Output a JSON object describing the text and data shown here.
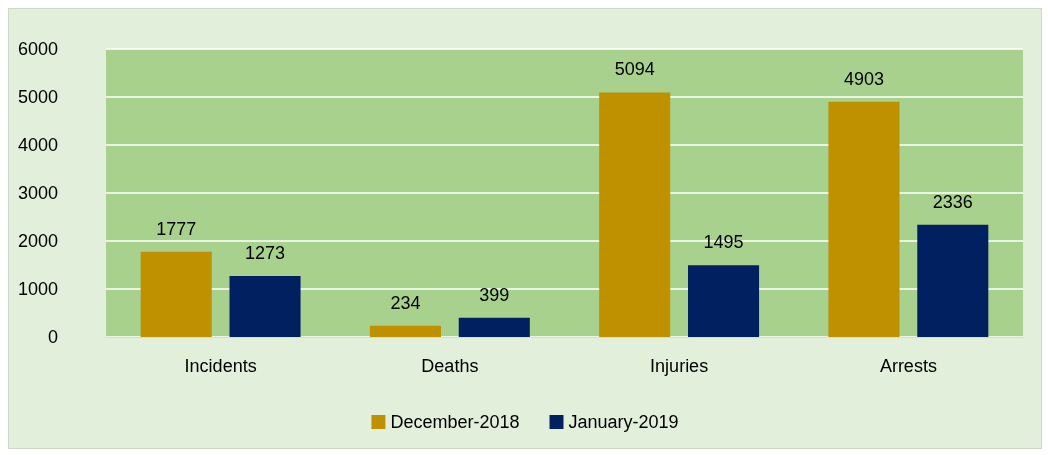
{
  "chart_data": {
    "type": "bar",
    "categories": [
      "Incidents",
      "Deaths",
      "Injuries",
      "Arrests"
    ],
    "series": [
      {
        "name": "December-2018",
        "color": "#bf9000",
        "values": [
          1777,
          234,
          5094,
          4903
        ]
      },
      {
        "name": "January-2019",
        "color": "#002060",
        "values": [
          1273,
          399,
          1495,
          2336
        ]
      }
    ],
    "ylim": [
      0,
      6000
    ],
    "yticks": [
      0,
      1000,
      2000,
      3000,
      4000,
      5000,
      6000
    ],
    "grid": "y",
    "legend": "bottom",
    "data_labels": true
  }
}
